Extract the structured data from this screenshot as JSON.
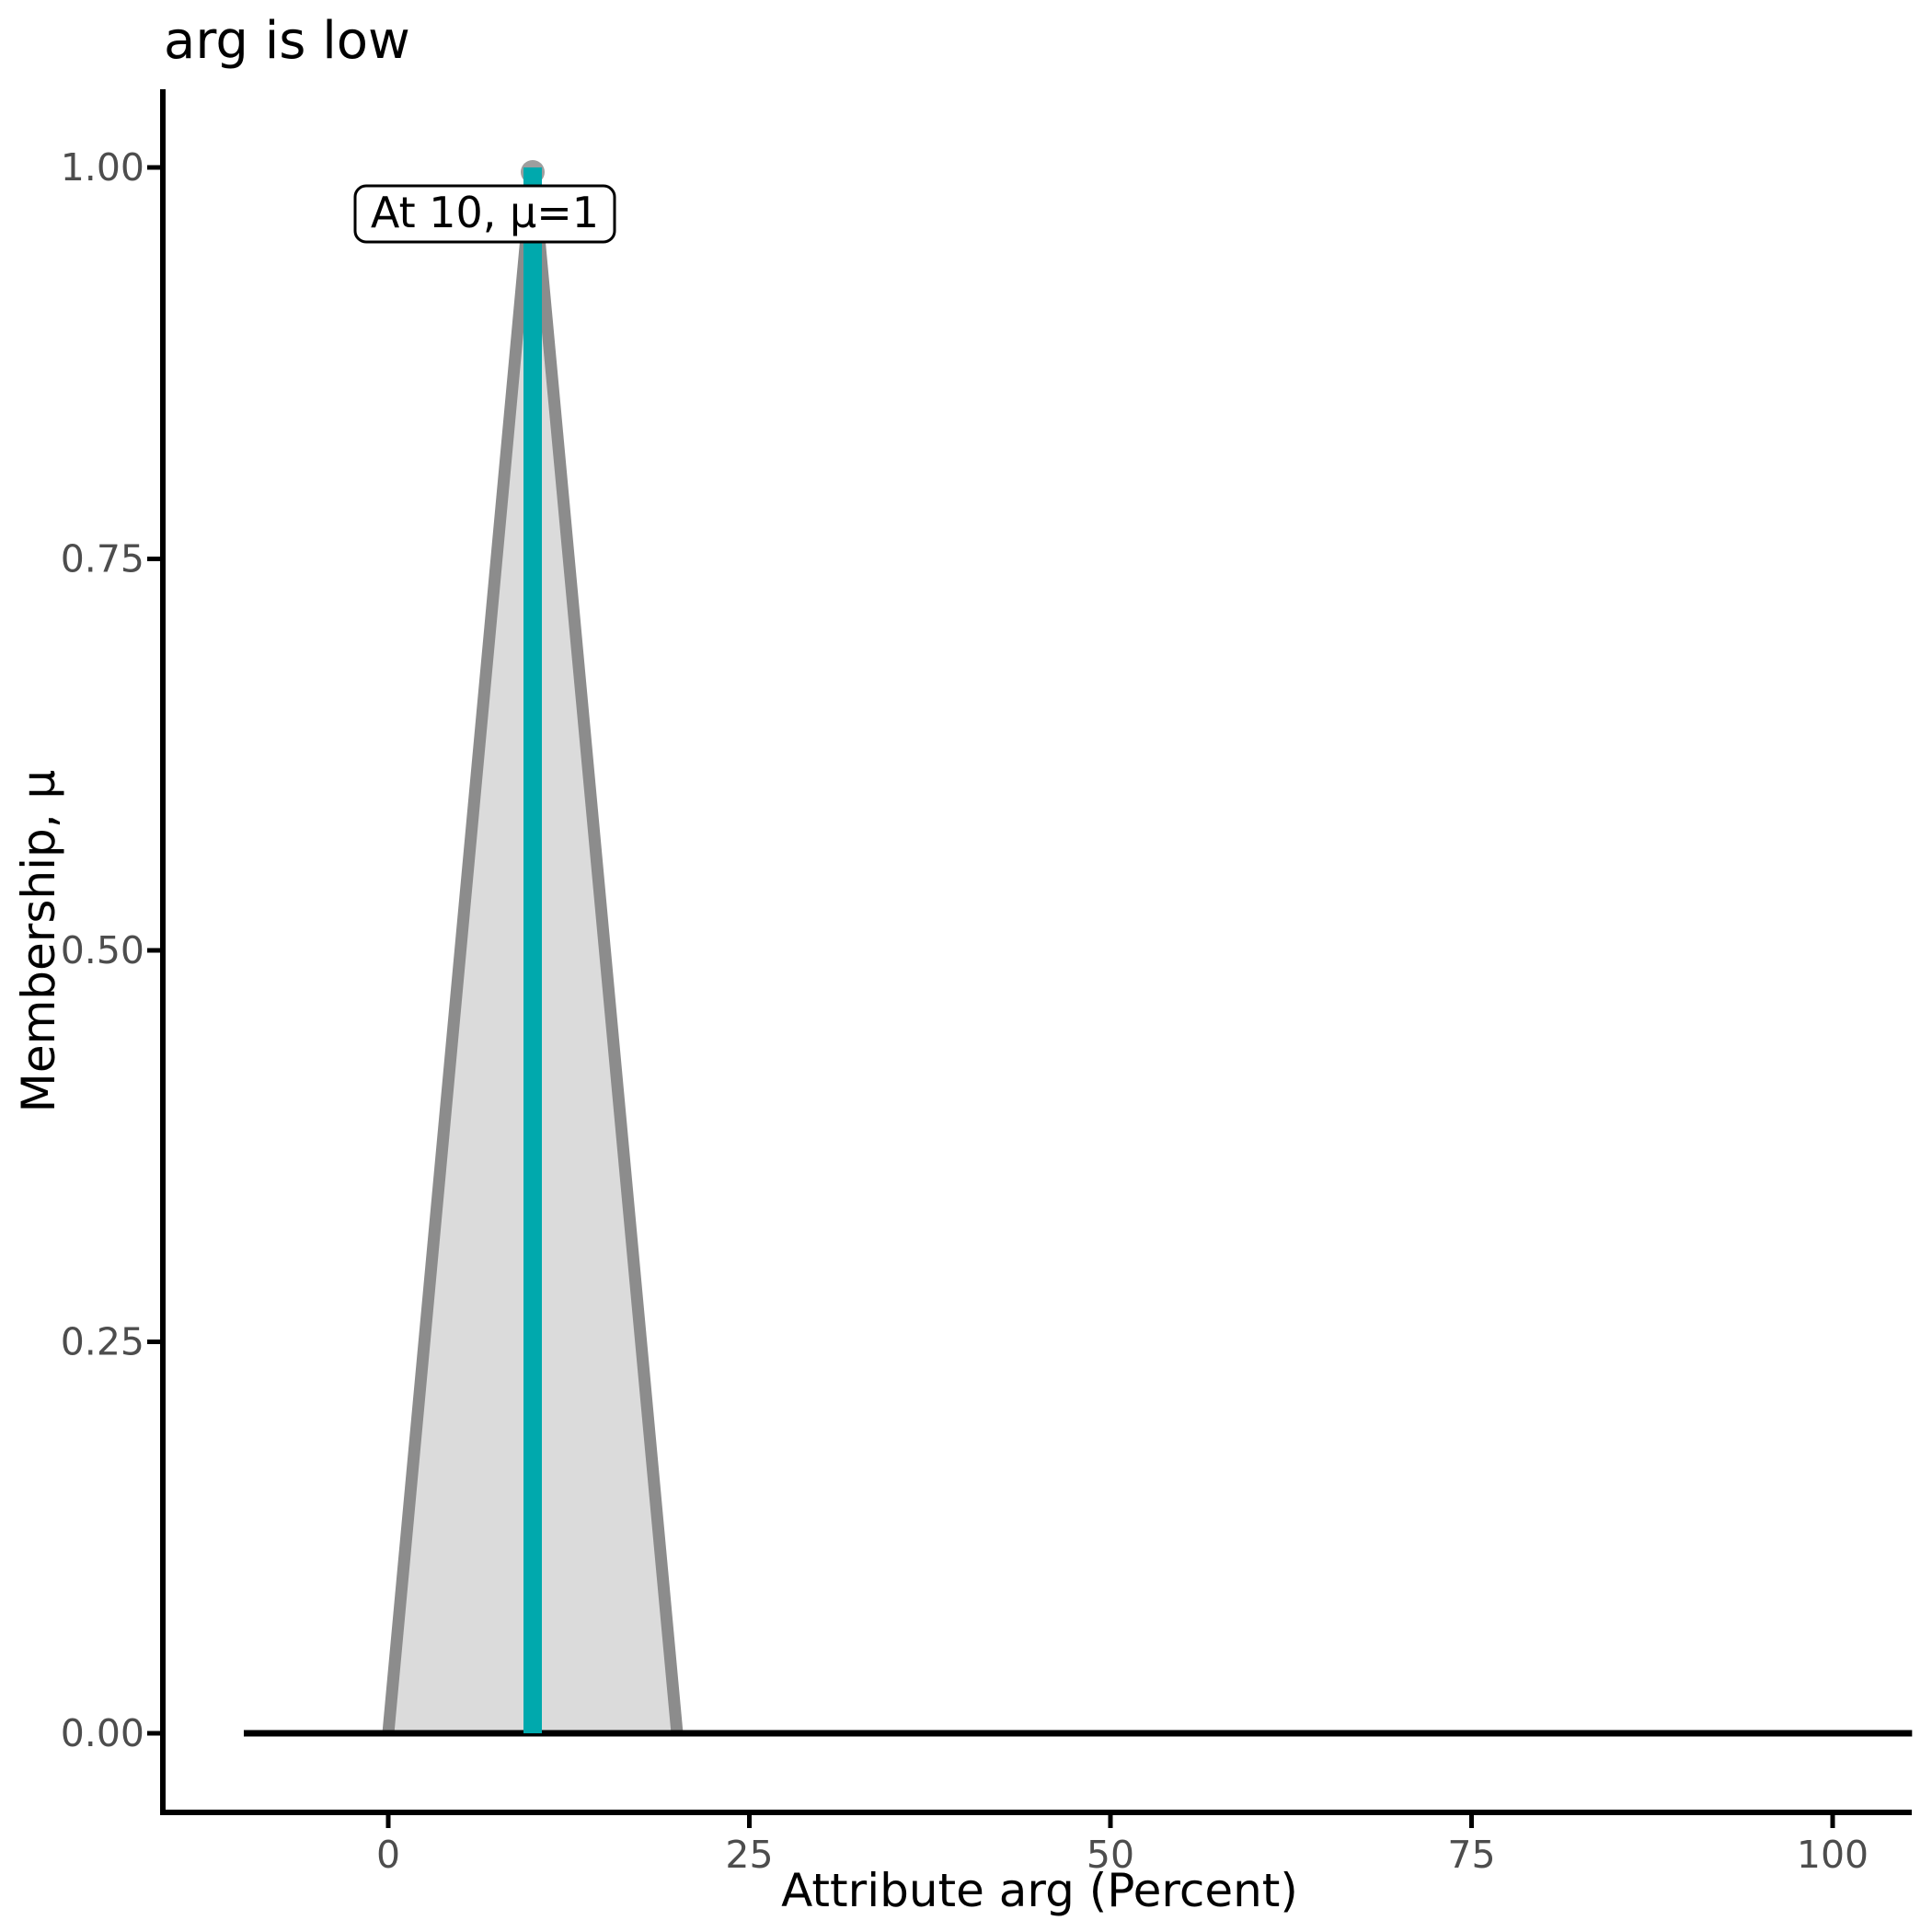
{
  "figure": {
    "title": "arg is low"
  },
  "colors": {
    "background": "#FFFFFF",
    "axis": "#000000",
    "tick_label": "#4D4D4D",
    "membership_fill": "#DBDBDB",
    "membership_edge": "#8C8C8C",
    "baseline": "#000000",
    "peak_line": "#00A9AD",
    "peak_point": "#9E9E9E",
    "annotation_bg": "#FFFFFF",
    "annotation_border": "#000000",
    "annotation_text": "#000000"
  },
  "chart_data": {
    "type": "area",
    "title": "arg is low",
    "xlabel": "Attribute arg (Percent)",
    "ylabel": "Membership, μ",
    "xlim": [
      -15.6,
      105.5
    ],
    "ylim": [
      -0.05,
      1.05
    ],
    "grid": false,
    "legend": "none",
    "x_ticks": [
      0,
      25,
      50,
      75,
      100
    ],
    "y_ticks": [
      0,
      0.25,
      0.5,
      0.75,
      1
    ],
    "y_tick_labels": [
      "0.00",
      "0.25",
      "0.50",
      "0.75",
      "1.00"
    ],
    "membership_function": {
      "name": "arg is low",
      "shape": "triangle",
      "x": [
        0,
        10,
        20
      ],
      "mu": [
        0,
        1,
        0
      ]
    },
    "baseline": {
      "x": [
        -10,
        105.5
      ],
      "mu": 0
    },
    "peak_line": {
      "x": 10,
      "mu_from": 0,
      "mu_to": 1
    },
    "peak_point": {
      "x": 10,
      "mu": 1
    },
    "annotation": {
      "text": "At 10, μ=1",
      "x": 10,
      "mu": 1
    }
  }
}
